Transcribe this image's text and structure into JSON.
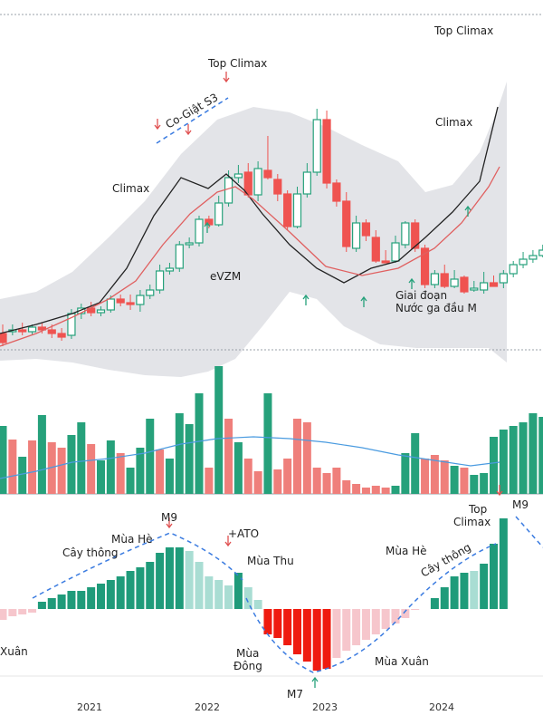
{
  "chart_data": [
    {
      "type": "candlestick",
      "panel": "price",
      "overlays": [
        "moving-average-fast",
        "moving-average-slow",
        "band"
      ],
      "colors": {
        "up": "#26a17b",
        "down": "#ef5350",
        "ma_fast": "#222222",
        "ma_slow": "#e06060",
        "band": "#d9dbe0"
      },
      "annotations": [
        {
          "text": "Top Climax"
        },
        {
          "text": "Co-Giật S3"
        },
        {
          "text": "Climax"
        },
        {
          "text": "eVZM"
        },
        {
          "text": "Top Climax"
        },
        {
          "text": "Climax"
        },
        {
          "text": "Giai đoạn"
        },
        {
          "text": "Nước ga đầu M"
        }
      ]
    },
    {
      "type": "bar",
      "panel": "volume",
      "overlays": [
        "volume-moving-average"
      ],
      "colors": {
        "up": "#26a17b",
        "down": "#ef7f7b",
        "ma": "#4a9be0"
      }
    },
    {
      "type": "bar",
      "panel": "histogram",
      "colors": {
        "strong_up": "#1f9b7a",
        "weak_up": "#a9ddd3",
        "strong_down": "#ef1b10",
        "weak_down": "#f6c6cc",
        "trend": "#3a7be0"
      },
      "annotations": [
        {
          "text": "M9"
        },
        {
          "text": "Mùa Hè"
        },
        {
          "text": "Cây thông"
        },
        {
          "text": "+ATO"
        },
        {
          "text": "Mùa Thu"
        },
        {
          "text": "Xuân"
        },
        {
          "text": "Mùa"
        },
        {
          "text": "Đông"
        },
        {
          "text": "M7"
        },
        {
          "text": "Mùa Xuân"
        },
        {
          "text": "Mùa Hè"
        },
        {
          "text": "Cây thông"
        },
        {
          "text": "Top"
        },
        {
          "text": "Climax"
        },
        {
          "text": "M9"
        }
      ]
    }
  ],
  "x_axis": {
    "ticks": [
      "2021",
      "2022",
      "2023",
      "2024"
    ]
  }
}
